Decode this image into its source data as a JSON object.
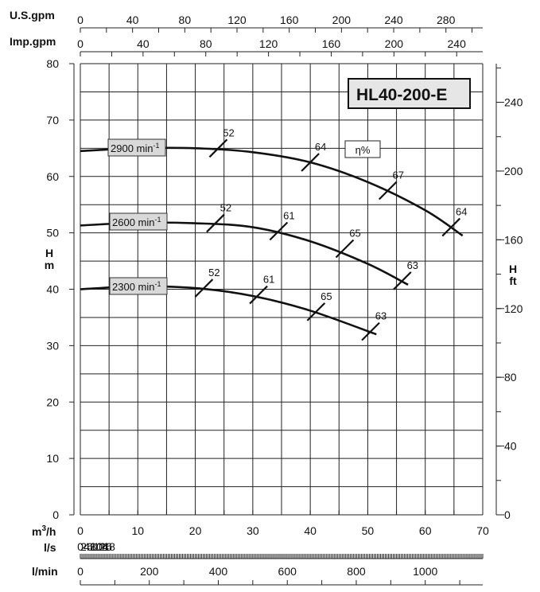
{
  "chart_data": {
    "type": "line",
    "title": "HL40-200-E",
    "efficiency_label": "η%",
    "axes": {
      "usgpm": {
        "label": "U.S.gpm",
        "ticks": [
          0,
          40,
          80,
          120,
          160,
          200,
          240,
          280
        ]
      },
      "impgpm": {
        "label": "Imp.gpm",
        "ticks": [
          0,
          40,
          80,
          120,
          160,
          200,
          240
        ]
      },
      "h_m": {
        "label": "H m",
        "label_top": "H",
        "label_bottom": "m",
        "ticks": [
          0,
          10,
          20,
          30,
          40,
          50,
          60,
          70,
          80
        ],
        "ylim": [
          0,
          80
        ]
      },
      "h_ft": {
        "label": "H ft",
        "label_top": "H",
        "label_bottom": "ft",
        "ticks": [
          0,
          40,
          80,
          120,
          160,
          200,
          240
        ]
      },
      "m3h": {
        "label": "m³/h",
        "label_main": "m",
        "label_sup": "3",
        "label_end": "/h",
        "ticks": [
          0,
          10,
          20,
          30,
          40,
          50,
          60,
          70
        ],
        "xlim": [
          0,
          70
        ]
      },
      "ls": {
        "label": "l/s",
        "ticks": [
          0,
          2,
          4,
          6,
          8,
          10,
          12,
          14,
          16,
          18
        ]
      },
      "lmin": {
        "label": "l/min",
        "ticks": [
          0,
          200,
          400,
          600,
          800,
          1000
        ]
      }
    },
    "grid": true,
    "series": [
      {
        "name": "2900 min⁻¹",
        "speed": "2900",
        "unit": "min",
        "sup": "-1",
        "x": [
          0,
          10,
          20,
          30,
          40,
          50,
          60,
          66.5
        ],
        "y": [
          64.5,
          65.0,
          65.0,
          64.3,
          62.5,
          59.0,
          54.0,
          49.5
        ]
      },
      {
        "name": "2600 min⁻¹",
        "speed": "2600",
        "unit": "min",
        "sup": "-1",
        "x": [
          0,
          10,
          20,
          30,
          40,
          50,
          57
        ],
        "y": [
          51.3,
          51.8,
          51.7,
          51.0,
          48.5,
          44.5,
          40.8
        ]
      },
      {
        "name": "2300 min⁻¹",
        "speed": "2300",
        "unit": "min",
        "sup": "-1",
        "x": [
          0,
          10,
          20,
          30,
          40,
          51.5
        ],
        "y": [
          40.0,
          40.5,
          40.2,
          38.8,
          36.2,
          32.0
        ]
      }
    ],
    "efficiency_marks": [
      {
        "label": "52",
        "x": 24.0,
        "y": 65.0
      },
      {
        "label": "64",
        "x": 40.0,
        "y": 62.5
      },
      {
        "label": "67",
        "x": 53.5,
        "y": 57.5
      },
      {
        "label": "64",
        "x": 64.5,
        "y": 51.0
      },
      {
        "label": "52",
        "x": 23.5,
        "y": 51.7
      },
      {
        "label": "61",
        "x": 34.5,
        "y": 50.3
      },
      {
        "label": "65",
        "x": 46.0,
        "y": 47.2
      },
      {
        "label": "63",
        "x": 56.0,
        "y": 41.5
      },
      {
        "label": "52",
        "x": 21.5,
        "y": 40.2
      },
      {
        "label": "61",
        "x": 31.0,
        "y": 39.0
      },
      {
        "label": "65",
        "x": 41.0,
        "y": 36.0
      },
      {
        "label": "63",
        "x": 50.5,
        "y": 32.5
      }
    ]
  }
}
